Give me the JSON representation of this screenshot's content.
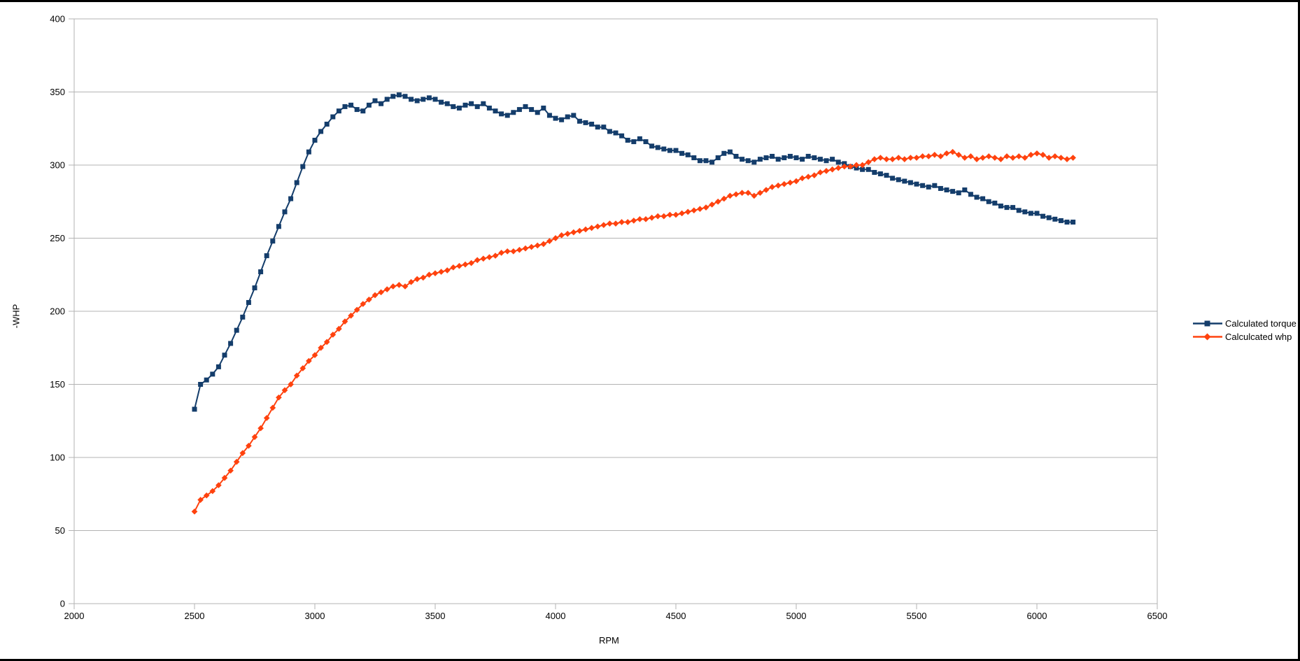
{
  "page": {
    "background": "#ffffff",
    "frame_color": "#000000"
  },
  "chart_data": {
    "type": "scatter",
    "title": "",
    "xlabel": "RPM",
    "ylabel": "-WHP",
    "xlim": [
      2000,
      6500
    ],
    "ylim": [
      0,
      400
    ],
    "x_ticks": [
      2000,
      2500,
      3000,
      3500,
      4000,
      4500,
      5000,
      5500,
      6000,
      6500
    ],
    "y_ticks": [
      0,
      50,
      100,
      150,
      200,
      250,
      300,
      350,
      400
    ],
    "grid": "horizontal",
    "grid_color": "#b3b3b3",
    "axis_color": "#b3b3b3",
    "tick_label_color": "#000000",
    "legend_position": "right",
    "series": [
      {
        "name": "Calculated torque",
        "color": "#143D6B",
        "marker": "square",
        "points": [
          [
            2500,
            133
          ],
          [
            2525,
            150
          ],
          [
            2550,
            153
          ],
          [
            2575,
            157
          ],
          [
            2600,
            162
          ],
          [
            2625,
            170
          ],
          [
            2650,
            178
          ],
          [
            2675,
            187
          ],
          [
            2700,
            196
          ],
          [
            2725,
            206
          ],
          [
            2750,
            216
          ],
          [
            2775,
            227
          ],
          [
            2800,
            238
          ],
          [
            2825,
            248
          ],
          [
            2850,
            258
          ],
          [
            2875,
            268
          ],
          [
            2900,
            277
          ],
          [
            2925,
            288
          ],
          [
            2950,
            299
          ],
          [
            2975,
            309
          ],
          [
            3000,
            317
          ],
          [
            3025,
            323
          ],
          [
            3050,
            328
          ],
          [
            3075,
            333
          ],
          [
            3100,
            337
          ],
          [
            3125,
            340
          ],
          [
            3150,
            341
          ],
          [
            3175,
            338
          ],
          [
            3200,
            337
          ],
          [
            3225,
            341
          ],
          [
            3250,
            344
          ],
          [
            3275,
            342
          ],
          [
            3300,
            345
          ],
          [
            3325,
            347
          ],
          [
            3350,
            348
          ],
          [
            3375,
            347
          ],
          [
            3400,
            345
          ],
          [
            3425,
            344
          ],
          [
            3450,
            345
          ],
          [
            3475,
            346
          ],
          [
            3500,
            345
          ],
          [
            3525,
            343
          ],
          [
            3550,
            342
          ],
          [
            3575,
            340
          ],
          [
            3600,
            339
          ],
          [
            3625,
            341
          ],
          [
            3650,
            342
          ],
          [
            3675,
            340
          ],
          [
            3700,
            342
          ],
          [
            3725,
            339
          ],
          [
            3750,
            337
          ],
          [
            3775,
            335
          ],
          [
            3800,
            334
          ],
          [
            3825,
            336
          ],
          [
            3850,
            338
          ],
          [
            3875,
            340
          ],
          [
            3900,
            338
          ],
          [
            3925,
            336
          ],
          [
            3950,
            339
          ],
          [
            3975,
            334
          ],
          [
            4000,
            332
          ],
          [
            4025,
            331
          ],
          [
            4050,
            333
          ],
          [
            4075,
            334
          ],
          [
            4100,
            330
          ],
          [
            4125,
            329
          ],
          [
            4150,
            328
          ],
          [
            4175,
            326
          ],
          [
            4200,
            326
          ],
          [
            4225,
            323
          ],
          [
            4250,
            322
          ],
          [
            4275,
            320
          ],
          [
            4300,
            317
          ],
          [
            4325,
            316
          ],
          [
            4350,
            318
          ],
          [
            4375,
            316
          ],
          [
            4400,
            313
          ],
          [
            4425,
            312
          ],
          [
            4450,
            311
          ],
          [
            4475,
            310
          ],
          [
            4500,
            310
          ],
          [
            4525,
            308
          ],
          [
            4550,
            307
          ],
          [
            4575,
            305
          ],
          [
            4600,
            303
          ],
          [
            4625,
            303
          ],
          [
            4650,
            302
          ],
          [
            4675,
            305
          ],
          [
            4700,
            308
          ],
          [
            4725,
            309
          ],
          [
            4750,
            306
          ],
          [
            4775,
            304
          ],
          [
            4800,
            303
          ],
          [
            4825,
            302
          ],
          [
            4850,
            304
          ],
          [
            4875,
            305
          ],
          [
            4900,
            306
          ],
          [
            4925,
            304
          ],
          [
            4950,
            305
          ],
          [
            4975,
            306
          ],
          [
            5000,
            305
          ],
          [
            5025,
            304
          ],
          [
            5050,
            306
          ],
          [
            5075,
            305
          ],
          [
            5100,
            304
          ],
          [
            5125,
            303
          ],
          [
            5150,
            304
          ],
          [
            5175,
            302
          ],
          [
            5200,
            301
          ],
          [
            5225,
            299
          ],
          [
            5250,
            298
          ],
          [
            5275,
            297
          ],
          [
            5300,
            297
          ],
          [
            5325,
            295
          ],
          [
            5350,
            294
          ],
          [
            5375,
            293
          ],
          [
            5400,
            291
          ],
          [
            5425,
            290
          ],
          [
            5450,
            289
          ],
          [
            5475,
            288
          ],
          [
            5500,
            287
          ],
          [
            5525,
            286
          ],
          [
            5550,
            285
          ],
          [
            5575,
            286
          ],
          [
            5600,
            284
          ],
          [
            5625,
            283
          ],
          [
            5650,
            282
          ],
          [
            5675,
            281
          ],
          [
            5700,
            283
          ],
          [
            5725,
            280
          ],
          [
            5750,
            278
          ],
          [
            5775,
            277
          ],
          [
            5800,
            275
          ],
          [
            5825,
            274
          ],
          [
            5850,
            272
          ],
          [
            5875,
            271
          ],
          [
            5900,
            271
          ],
          [
            5925,
            269
          ],
          [
            5950,
            268
          ],
          [
            5975,
            267
          ],
          [
            6000,
            267
          ],
          [
            6025,
            265
          ],
          [
            6050,
            264
          ],
          [
            6075,
            263
          ],
          [
            6100,
            262
          ],
          [
            6125,
            261
          ],
          [
            6150,
            261
          ]
        ]
      },
      {
        "name": "Calculcated whp",
        "color": "#FF420E",
        "marker": "diamond",
        "points": [
          [
            2500,
            63
          ],
          [
            2525,
            71
          ],
          [
            2550,
            74
          ],
          [
            2575,
            77
          ],
          [
            2600,
            81
          ],
          [
            2625,
            86
          ],
          [
            2650,
            91
          ],
          [
            2675,
            97
          ],
          [
            2700,
            103
          ],
          [
            2725,
            108
          ],
          [
            2750,
            114
          ],
          [
            2775,
            120
          ],
          [
            2800,
            127
          ],
          [
            2825,
            134
          ],
          [
            2850,
            141
          ],
          [
            2875,
            146
          ],
          [
            2900,
            150
          ],
          [
            2925,
            156
          ],
          [
            2950,
            161
          ],
          [
            2975,
            166
          ],
          [
            3000,
            170
          ],
          [
            3025,
            175
          ],
          [
            3050,
            179
          ],
          [
            3075,
            184
          ],
          [
            3100,
            188
          ],
          [
            3125,
            193
          ],
          [
            3150,
            197
          ],
          [
            3175,
            201
          ],
          [
            3200,
            205
          ],
          [
            3225,
            208
          ],
          [
            3250,
            211
          ],
          [
            3275,
            213
          ],
          [
            3300,
            215
          ],
          [
            3325,
            217
          ],
          [
            3350,
            218
          ],
          [
            3375,
            217
          ],
          [
            3400,
            220
          ],
          [
            3425,
            222
          ],
          [
            3450,
            223
          ],
          [
            3475,
            225
          ],
          [
            3500,
            226
          ],
          [
            3525,
            227
          ],
          [
            3550,
            228
          ],
          [
            3575,
            230
          ],
          [
            3600,
            231
          ],
          [
            3625,
            232
          ],
          [
            3650,
            233
          ],
          [
            3675,
            235
          ],
          [
            3700,
            236
          ],
          [
            3725,
            237
          ],
          [
            3750,
            238
          ],
          [
            3775,
            240
          ],
          [
            3800,
            241
          ],
          [
            3825,
            241
          ],
          [
            3850,
            242
          ],
          [
            3875,
            243
          ],
          [
            3900,
            244
          ],
          [
            3925,
            245
          ],
          [
            3950,
            246
          ],
          [
            3975,
            248
          ],
          [
            4000,
            250
          ],
          [
            4025,
            252
          ],
          [
            4050,
            253
          ],
          [
            4075,
            254
          ],
          [
            4100,
            255
          ],
          [
            4125,
            256
          ],
          [
            4150,
            257
          ],
          [
            4175,
            258
          ],
          [
            4200,
            259
          ],
          [
            4225,
            260
          ],
          [
            4250,
            260
          ],
          [
            4275,
            261
          ],
          [
            4300,
            261
          ],
          [
            4325,
            262
          ],
          [
            4350,
            263
          ],
          [
            4375,
            263
          ],
          [
            4400,
            264
          ],
          [
            4425,
            265
          ],
          [
            4450,
            265
          ],
          [
            4475,
            266
          ],
          [
            4500,
            266
          ],
          [
            4525,
            267
          ],
          [
            4550,
            268
          ],
          [
            4575,
            269
          ],
          [
            4600,
            270
          ],
          [
            4625,
            271
          ],
          [
            4650,
            273
          ],
          [
            4675,
            275
          ],
          [
            4700,
            277
          ],
          [
            4725,
            279
          ],
          [
            4750,
            280
          ],
          [
            4775,
            281
          ],
          [
            4800,
            281
          ],
          [
            4825,
            279
          ],
          [
            4850,
            281
          ],
          [
            4875,
            283
          ],
          [
            4900,
            285
          ],
          [
            4925,
            286
          ],
          [
            4950,
            287
          ],
          [
            4975,
            288
          ],
          [
            5000,
            289
          ],
          [
            5025,
            291
          ],
          [
            5050,
            292
          ],
          [
            5075,
            293
          ],
          [
            5100,
            295
          ],
          [
            5125,
            296
          ],
          [
            5150,
            297
          ],
          [
            5175,
            298
          ],
          [
            5200,
            299
          ],
          [
            5225,
            299
          ],
          [
            5250,
            300
          ],
          [
            5275,
            300
          ],
          [
            5300,
            302
          ],
          [
            5325,
            304
          ],
          [
            5350,
            305
          ],
          [
            5375,
            304
          ],
          [
            5400,
            304
          ],
          [
            5425,
            305
          ],
          [
            5450,
            304
          ],
          [
            5475,
            305
          ],
          [
            5500,
            305
          ],
          [
            5525,
            306
          ],
          [
            5550,
            306
          ],
          [
            5575,
            307
          ],
          [
            5600,
            306
          ],
          [
            5625,
            308
          ],
          [
            5650,
            309
          ],
          [
            5675,
            307
          ],
          [
            5700,
            305
          ],
          [
            5725,
            306
          ],
          [
            5750,
            304
          ],
          [
            5775,
            305
          ],
          [
            5800,
            306
          ],
          [
            5825,
            305
          ],
          [
            5850,
            304
          ],
          [
            5875,
            306
          ],
          [
            5900,
            305
          ],
          [
            5925,
            306
          ],
          [
            5950,
            305
          ],
          [
            5975,
            307
          ],
          [
            6000,
            308
          ],
          [
            6025,
            307
          ],
          [
            6050,
            305
          ],
          [
            6075,
            306
          ],
          [
            6100,
            305
          ],
          [
            6125,
            304
          ],
          [
            6150,
            305
          ]
        ]
      }
    ]
  }
}
